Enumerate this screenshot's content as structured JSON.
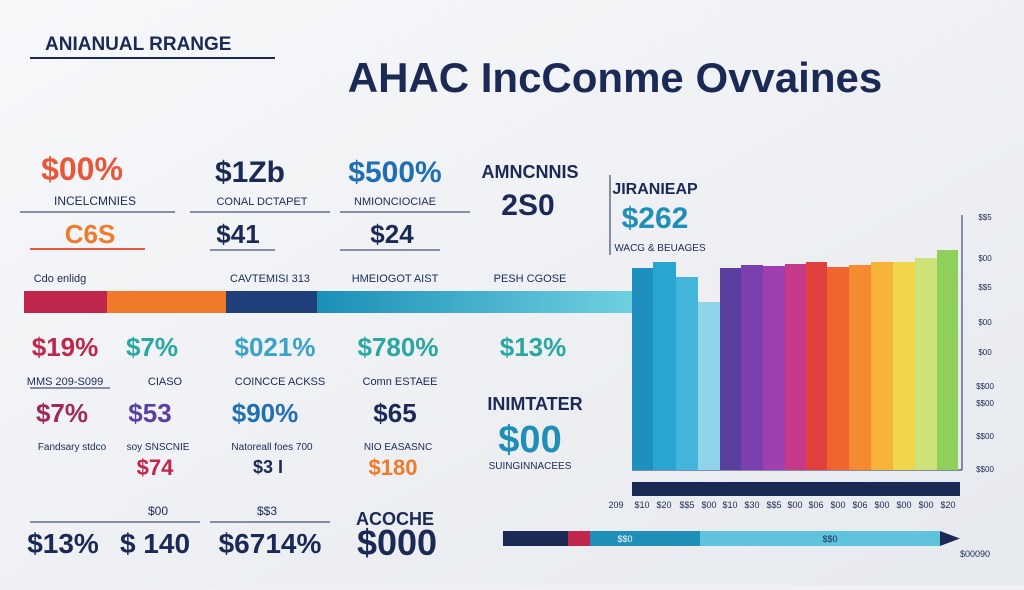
{
  "header": {
    "tag": "ANIANUAL RRANGE",
    "title": "AHAC IncConme Ovvaines"
  },
  "cards": [
    {
      "big": "$00%",
      "label": "INCELCMNIES",
      "value": "C6S"
    },
    {
      "big": "$1Zb",
      "label": "CONAL DCTAPET",
      "value": "$41"
    },
    {
      "big": "$500%",
      "label": "NMIONCIOCIAE",
      "value": "$24"
    },
    {
      "big": "AMNCNNIS",
      "value": "2S0"
    },
    {
      "big": "JIRANIEAP",
      "value": "$262",
      "label": "WACG & BEUAGES"
    }
  ],
  "band_labels": [
    "Cdo enlidg",
    "CAVTEMISI 313",
    "HMEIOGOT AIST",
    "PESH CGOSE"
  ],
  "row2": [
    "$19%",
    "$7%",
    "$021%",
    "$780%",
    "$13%"
  ],
  "row3": {
    "labels": [
      "MMS 209-S099",
      "CIASO",
      "COINCCE ACKSS",
      "Comn ESTAEE",
      "INIMTATER"
    ],
    "values": [
      "$7%",
      "$53",
      "$90%",
      "$65",
      "$00"
    ]
  },
  "row4": [
    "Fandsary stdco",
    "soy SNSCNIE",
    "Natoreall foes 700",
    "NIO EASASNC",
    "SUINGINNACEES"
  ],
  "row5": [
    "$74",
    "$3 I",
    "$180"
  ],
  "bottom": {
    "labels": [
      "$00",
      "$$3",
      "ACOCHE"
    ],
    "values": [
      "$13%",
      "$ 140",
      "$6714%",
      "$000"
    ]
  },
  "chart": {
    "axis_labels": [
      "$$5",
      "$00",
      "$$5",
      "$00",
      "$00",
      "$$00",
      "$$00",
      "$$00",
      "$$00"
    ],
    "x_labels": [
      "209",
      "$10",
      "$20",
      "$$5",
      "$00",
      "$10",
      "$30",
      "$$5",
      "$00",
      "$06",
      "$00",
      "$06",
      "$00",
      "$00",
      "$00",
      "$20"
    ],
    "arrow_labels": [
      "$$0",
      "$$0"
    ],
    "corner": "$00090"
  }
}
